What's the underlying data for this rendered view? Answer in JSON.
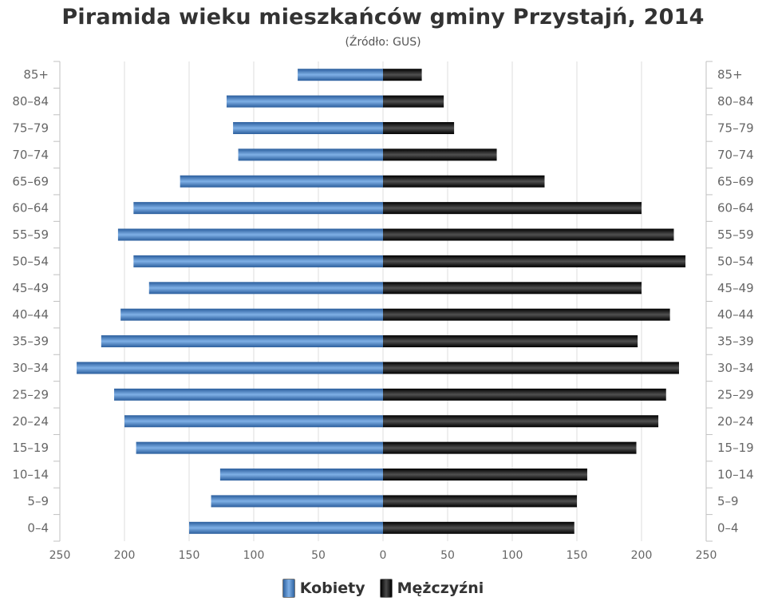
{
  "header": {
    "title": "Piramida wieku mieszkańców gminy Przystajń, 2014",
    "subtitle": "(Źródło: GUS)"
  },
  "legend": {
    "female_label": "Kobiety",
    "male_label": "Mężczyźni"
  },
  "colors": {
    "female_dark": "#2e62a0",
    "female_light": "#7fb0e6",
    "male_dark": "#000000",
    "male_light": "#4a4a4a",
    "grid": "#dddddd",
    "axis_text": "#666666"
  },
  "chart_data": {
    "type": "bar",
    "orientation": "horizontal-pyramid",
    "title": "Piramida wieku mieszkańców gminy Przystajń, 2014",
    "subtitle": "(Źródło: GUS)",
    "categories": [
      "85+",
      "80–84",
      "75–79",
      "70–74",
      "65–69",
      "60–64",
      "55–59",
      "50–54",
      "45–49",
      "40–44",
      "35–39",
      "30–34",
      "25–29",
      "20–24",
      "15–19",
      "10–14",
      "5–9",
      "0–4"
    ],
    "series": [
      {
        "name": "Kobiety",
        "values": [
          66,
          121,
          116,
          112,
          157,
          193,
          205,
          193,
          181,
          203,
          218,
          237,
          208,
          200,
          191,
          126,
          133,
          150
        ]
      },
      {
        "name": "Mężczyźni",
        "values": [
          30,
          47,
          55,
          88,
          125,
          200,
          225,
          234,
          200,
          222,
          197,
          229,
          219,
          213,
          196,
          158,
          150,
          148
        ]
      }
    ],
    "xlim": [
      -250,
      250
    ],
    "x_ticks": [
      "250",
      "200",
      "150",
      "100",
      "50",
      "0",
      "50",
      "100",
      "150",
      "200",
      "250"
    ],
    "grid": true,
    "legend_position": "bottom-center"
  }
}
